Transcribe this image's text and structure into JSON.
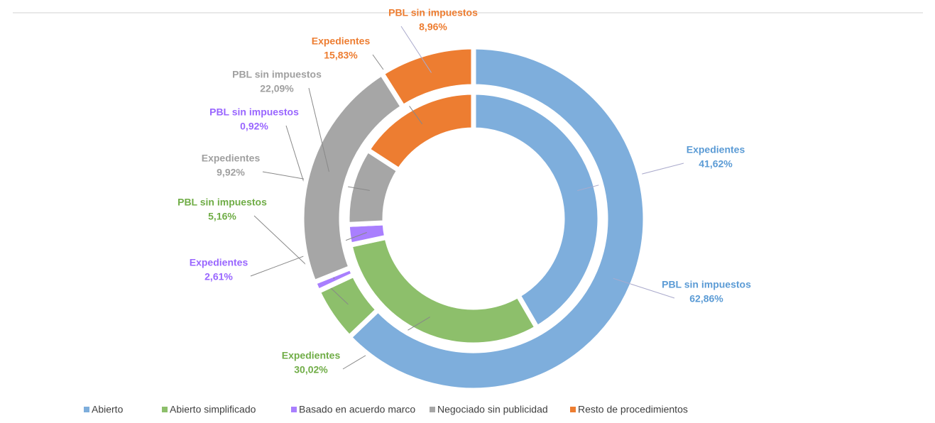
{
  "chart_data": {
    "type": "donut",
    "categories": [
      "Abierto",
      "Abierto simplificado",
      "Basado en acuerdo marco",
      "Negociado sin publicidad",
      "Resto de procedimientos"
    ],
    "colors": [
      "#7eaedc",
      "#8dbf6b",
      "#a97ffe",
      "#a6a6a6",
      "#ed7d31"
    ],
    "label_colors": [
      "#5b9bd5",
      "#70ad47",
      "#9966ff",
      "#a0a0a0",
      "#ed7d31"
    ],
    "series": [
      {
        "name": "Expedientes",
        "values": [
          41.62,
          30.02,
          2.61,
          9.92,
          15.83
        ],
        "value_labels": [
          "41,62%",
          "30,02%",
          "2,61%",
          "9,92%",
          "15,83%"
        ]
      },
      {
        "name": "PBL sin impuestos",
        "values": [
          62.86,
          5.16,
          0.92,
          22.09,
          8.96
        ],
        "value_labels": [
          "62,86%",
          "5,16%",
          "0,92%",
          "22,09%",
          "8,96%"
        ]
      }
    ],
    "legend": "bottom"
  }
}
